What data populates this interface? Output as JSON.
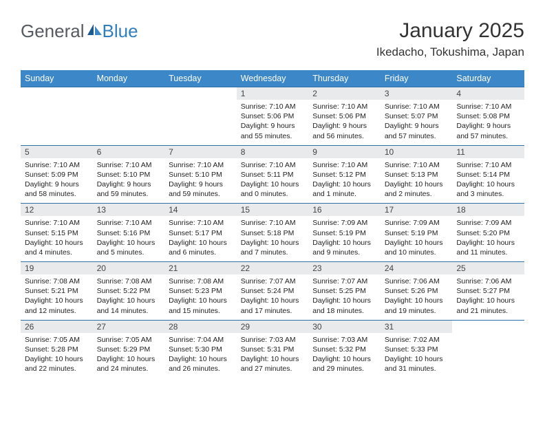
{
  "logo": {
    "text1": "General",
    "text2": "Blue"
  },
  "title": "January 2025",
  "location": "Ikedacho, Tokushima, Japan",
  "colors": {
    "header_bg": "#3c87c7",
    "header_text": "#ffffff",
    "daynum_bg": "#e9eaeb",
    "row_border": "#2f6fa8",
    "logo_gray": "#555b61",
    "logo_blue": "#2f7fbf"
  },
  "day_headers": [
    "Sunday",
    "Monday",
    "Tuesday",
    "Wednesday",
    "Thursday",
    "Friday",
    "Saturday"
  ],
  "weeks": [
    [
      null,
      null,
      null,
      {
        "n": "1",
        "sr": "7:10 AM",
        "ss": "5:06 PM",
        "dl": "9 hours and 55 minutes."
      },
      {
        "n": "2",
        "sr": "7:10 AM",
        "ss": "5:06 PM",
        "dl": "9 hours and 56 minutes."
      },
      {
        "n": "3",
        "sr": "7:10 AM",
        "ss": "5:07 PM",
        "dl": "9 hours and 57 minutes."
      },
      {
        "n": "4",
        "sr": "7:10 AM",
        "ss": "5:08 PM",
        "dl": "9 hours and 57 minutes."
      }
    ],
    [
      {
        "n": "5",
        "sr": "7:10 AM",
        "ss": "5:09 PM",
        "dl": "9 hours and 58 minutes."
      },
      {
        "n": "6",
        "sr": "7:10 AM",
        "ss": "5:10 PM",
        "dl": "9 hours and 59 minutes."
      },
      {
        "n": "7",
        "sr": "7:10 AM",
        "ss": "5:10 PM",
        "dl": "9 hours and 59 minutes."
      },
      {
        "n": "8",
        "sr": "7:10 AM",
        "ss": "5:11 PM",
        "dl": "10 hours and 0 minutes."
      },
      {
        "n": "9",
        "sr": "7:10 AM",
        "ss": "5:12 PM",
        "dl": "10 hours and 1 minute."
      },
      {
        "n": "10",
        "sr": "7:10 AM",
        "ss": "5:13 PM",
        "dl": "10 hours and 2 minutes."
      },
      {
        "n": "11",
        "sr": "7:10 AM",
        "ss": "5:14 PM",
        "dl": "10 hours and 3 minutes."
      }
    ],
    [
      {
        "n": "12",
        "sr": "7:10 AM",
        "ss": "5:15 PM",
        "dl": "10 hours and 4 minutes."
      },
      {
        "n": "13",
        "sr": "7:10 AM",
        "ss": "5:16 PM",
        "dl": "10 hours and 5 minutes."
      },
      {
        "n": "14",
        "sr": "7:10 AM",
        "ss": "5:17 PM",
        "dl": "10 hours and 6 minutes."
      },
      {
        "n": "15",
        "sr": "7:10 AM",
        "ss": "5:18 PM",
        "dl": "10 hours and 7 minutes."
      },
      {
        "n": "16",
        "sr": "7:09 AM",
        "ss": "5:19 PM",
        "dl": "10 hours and 9 minutes."
      },
      {
        "n": "17",
        "sr": "7:09 AM",
        "ss": "5:19 PM",
        "dl": "10 hours and 10 minutes."
      },
      {
        "n": "18",
        "sr": "7:09 AM",
        "ss": "5:20 PM",
        "dl": "10 hours and 11 minutes."
      }
    ],
    [
      {
        "n": "19",
        "sr": "7:08 AM",
        "ss": "5:21 PM",
        "dl": "10 hours and 12 minutes."
      },
      {
        "n": "20",
        "sr": "7:08 AM",
        "ss": "5:22 PM",
        "dl": "10 hours and 14 minutes."
      },
      {
        "n": "21",
        "sr": "7:08 AM",
        "ss": "5:23 PM",
        "dl": "10 hours and 15 minutes."
      },
      {
        "n": "22",
        "sr": "7:07 AM",
        "ss": "5:24 PM",
        "dl": "10 hours and 17 minutes."
      },
      {
        "n": "23",
        "sr": "7:07 AM",
        "ss": "5:25 PM",
        "dl": "10 hours and 18 minutes."
      },
      {
        "n": "24",
        "sr": "7:06 AM",
        "ss": "5:26 PM",
        "dl": "10 hours and 19 minutes."
      },
      {
        "n": "25",
        "sr": "7:06 AM",
        "ss": "5:27 PM",
        "dl": "10 hours and 21 minutes."
      }
    ],
    [
      {
        "n": "26",
        "sr": "7:05 AM",
        "ss": "5:28 PM",
        "dl": "10 hours and 22 minutes."
      },
      {
        "n": "27",
        "sr": "7:05 AM",
        "ss": "5:29 PM",
        "dl": "10 hours and 24 minutes."
      },
      {
        "n": "28",
        "sr": "7:04 AM",
        "ss": "5:30 PM",
        "dl": "10 hours and 26 minutes."
      },
      {
        "n": "29",
        "sr": "7:03 AM",
        "ss": "5:31 PM",
        "dl": "10 hours and 27 minutes."
      },
      {
        "n": "30",
        "sr": "7:03 AM",
        "ss": "5:32 PM",
        "dl": "10 hours and 29 minutes."
      },
      {
        "n": "31",
        "sr": "7:02 AM",
        "ss": "5:33 PM",
        "dl": "10 hours and 31 minutes."
      },
      null
    ]
  ],
  "labels": {
    "sunrise": "Sunrise: ",
    "sunset": "Sunset: ",
    "daylight": "Daylight: "
  }
}
